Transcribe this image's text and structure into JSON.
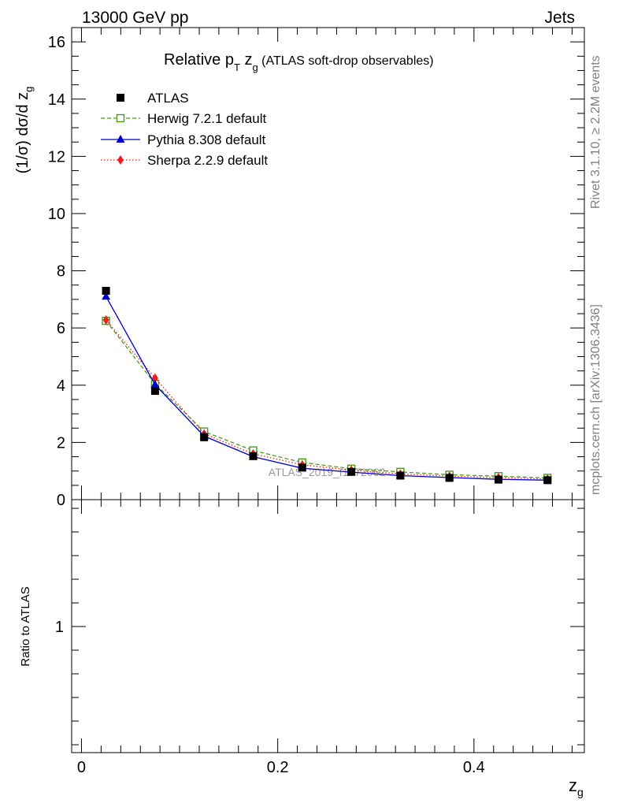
{
  "header": {
    "left": "13000 GeV pp",
    "right": "Jets"
  },
  "title": {
    "main": "Relative p",
    "sub_T": "T",
    "after": " z",
    "sub_g": "g",
    "paren": " (ATLAS soft-drop observables)"
  },
  "side_labels": {
    "rivet": "Rivet 3.1.10, ≥ 2.2M events",
    "mcplots": "mcplots.cern.ch [arXiv:1306.3436]"
  },
  "watermark": "ATLAS_2019_I1772062",
  "colors": {
    "atlas": "#000000",
    "herwig": "#4c9a1e",
    "pythia": "#0000cc",
    "sherpa": "#ee1c1c",
    "side_text": "#808080"
  },
  "chart_data": [
    {
      "type": "line",
      "ylabel": "(1/σ) dσ/d z",
      "ylabel_sub": "g",
      "xlim": [
        -0.01,
        0.5125
      ],
      "ylim": [
        0,
        16.5
      ],
      "yticks": [
        0,
        2,
        4,
        6,
        8,
        10,
        12,
        14,
        16
      ],
      "x": [
        0.025,
        0.075,
        0.125,
        0.175,
        0.225,
        0.275,
        0.325,
        0.375,
        0.425,
        0.475
      ],
      "series": [
        {
          "name": "ATLAS",
          "style": "marker",
          "marker": "square-filled",
          "values": [
            7.3,
            3.8,
            2.18,
            1.52,
            1.12,
            0.97,
            0.84,
            0.76,
            0.7,
            0.68
          ]
        },
        {
          "name": "Herwig 7.2.1 default",
          "style": "dashed",
          "marker": "square-open",
          "values": [
            6.25,
            4.05,
            2.38,
            1.72,
            1.3,
            1.08,
            0.97,
            0.87,
            0.82,
            0.76
          ]
        },
        {
          "name": "Pythia 8.308 default",
          "style": "solid",
          "marker": "triangle",
          "values": [
            7.1,
            4.02,
            2.22,
            1.5,
            1.1,
            0.96,
            0.84,
            0.77,
            0.71,
            0.68
          ]
        },
        {
          "name": "Sherpa 2.2.9 default",
          "style": "dotted",
          "marker": "diamond",
          "values": [
            6.28,
            4.25,
            2.3,
            1.6,
            1.22,
            1.03,
            0.9,
            0.82,
            0.77,
            0.72
          ]
        }
      ]
    },
    {
      "type": "line",
      "xlabel": "z",
      "xlabel_sub": "g",
      "ylabel": "Ratio to ATLAS",
      "yticks": [
        1
      ],
      "xticks": [
        0,
        0.2,
        0.4
      ],
      "xtick_labels": [
        "0",
        "0.2",
        "0.4"
      ]
    }
  ]
}
